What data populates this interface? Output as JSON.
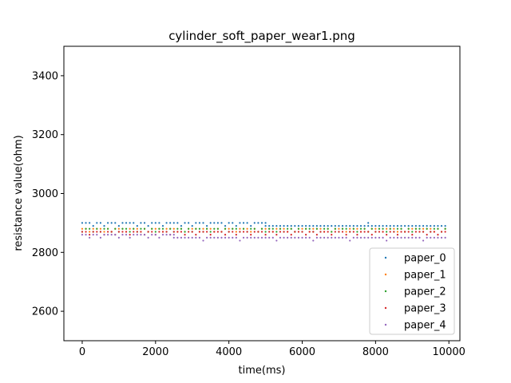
{
  "chart_data": {
    "type": "scatter",
    "title": "cylinder_soft_paper_wear1.png",
    "xlabel": "time(ms)",
    "ylabel": "resistance value(ohm)",
    "xlim": [
      -500,
      10300
    ],
    "ylim": [
      2500,
      3500
    ],
    "xticks": [
      0,
      2000,
      4000,
      6000,
      8000,
      10000
    ],
    "yticks": [
      2600,
      2800,
      3000,
      3200,
      3400
    ],
    "legend_position": "lower-right",
    "x_range": [
      0,
      9900
    ],
    "sample_interval_ms": 100,
    "series": [
      {
        "name": "paper_0",
        "color": "#1f77b4",
        "segments": [
          {
            "from": 0,
            "to": 5000,
            "levels": [
              2900,
              2890
            ],
            "pattern": [
              0,
              0,
              0,
              1,
              0,
              0,
              1,
              0,
              0,
              0,
              1,
              0
            ]
          },
          {
            "from": 5000,
            "to": 9900,
            "levels": [
              2890
            ],
            "pattern": [
              0
            ]
          }
        ],
        "outliers": [
          {
            "x": 7800,
            "y": 2900
          }
        ]
      },
      {
        "name": "paper_1",
        "color": "#ff7f0e",
        "segments": [
          {
            "from": 0,
            "to": 9900,
            "levels": [
              2880,
              2870
            ],
            "pattern": [
              0,
              0,
              1,
              0,
              0,
              0,
              1,
              0,
              1,
              0
            ]
          }
        ],
        "outliers": []
      },
      {
        "name": "paper_2",
        "color": "#2ca02c",
        "segments": [
          {
            "from": 0,
            "to": 9900,
            "levels": [
              2880,
              2870
            ],
            "pattern": [
              1,
              0,
              0,
              1,
              0,
              1,
              0,
              0,
              1,
              0
            ]
          }
        ],
        "outliers": []
      },
      {
        "name": "paper_3",
        "color": "#d62728",
        "segments": [
          {
            "from": 0,
            "to": 9900,
            "levels": [
              2870,
              2860
            ],
            "pattern": [
              0,
              0,
              1,
              0,
              0,
              0,
              1,
              0,
              0,
              1,
              0
            ]
          }
        ],
        "outliers": []
      },
      {
        "name": "paper_4",
        "color": "#9467bd",
        "segments": [
          {
            "from": 0,
            "to": 2500,
            "levels": [
              2860,
              2850
            ],
            "pattern": [
              0,
              0,
              1,
              0,
              0,
              1,
              0,
              0
            ]
          },
          {
            "from": 2500,
            "to": 9900,
            "levels": [
              2850,
              2840
            ],
            "pattern": [
              0,
              0,
              0,
              0,
              0,
              0,
              0,
              0,
              1,
              0
            ]
          }
        ],
        "outliers": []
      }
    ]
  }
}
